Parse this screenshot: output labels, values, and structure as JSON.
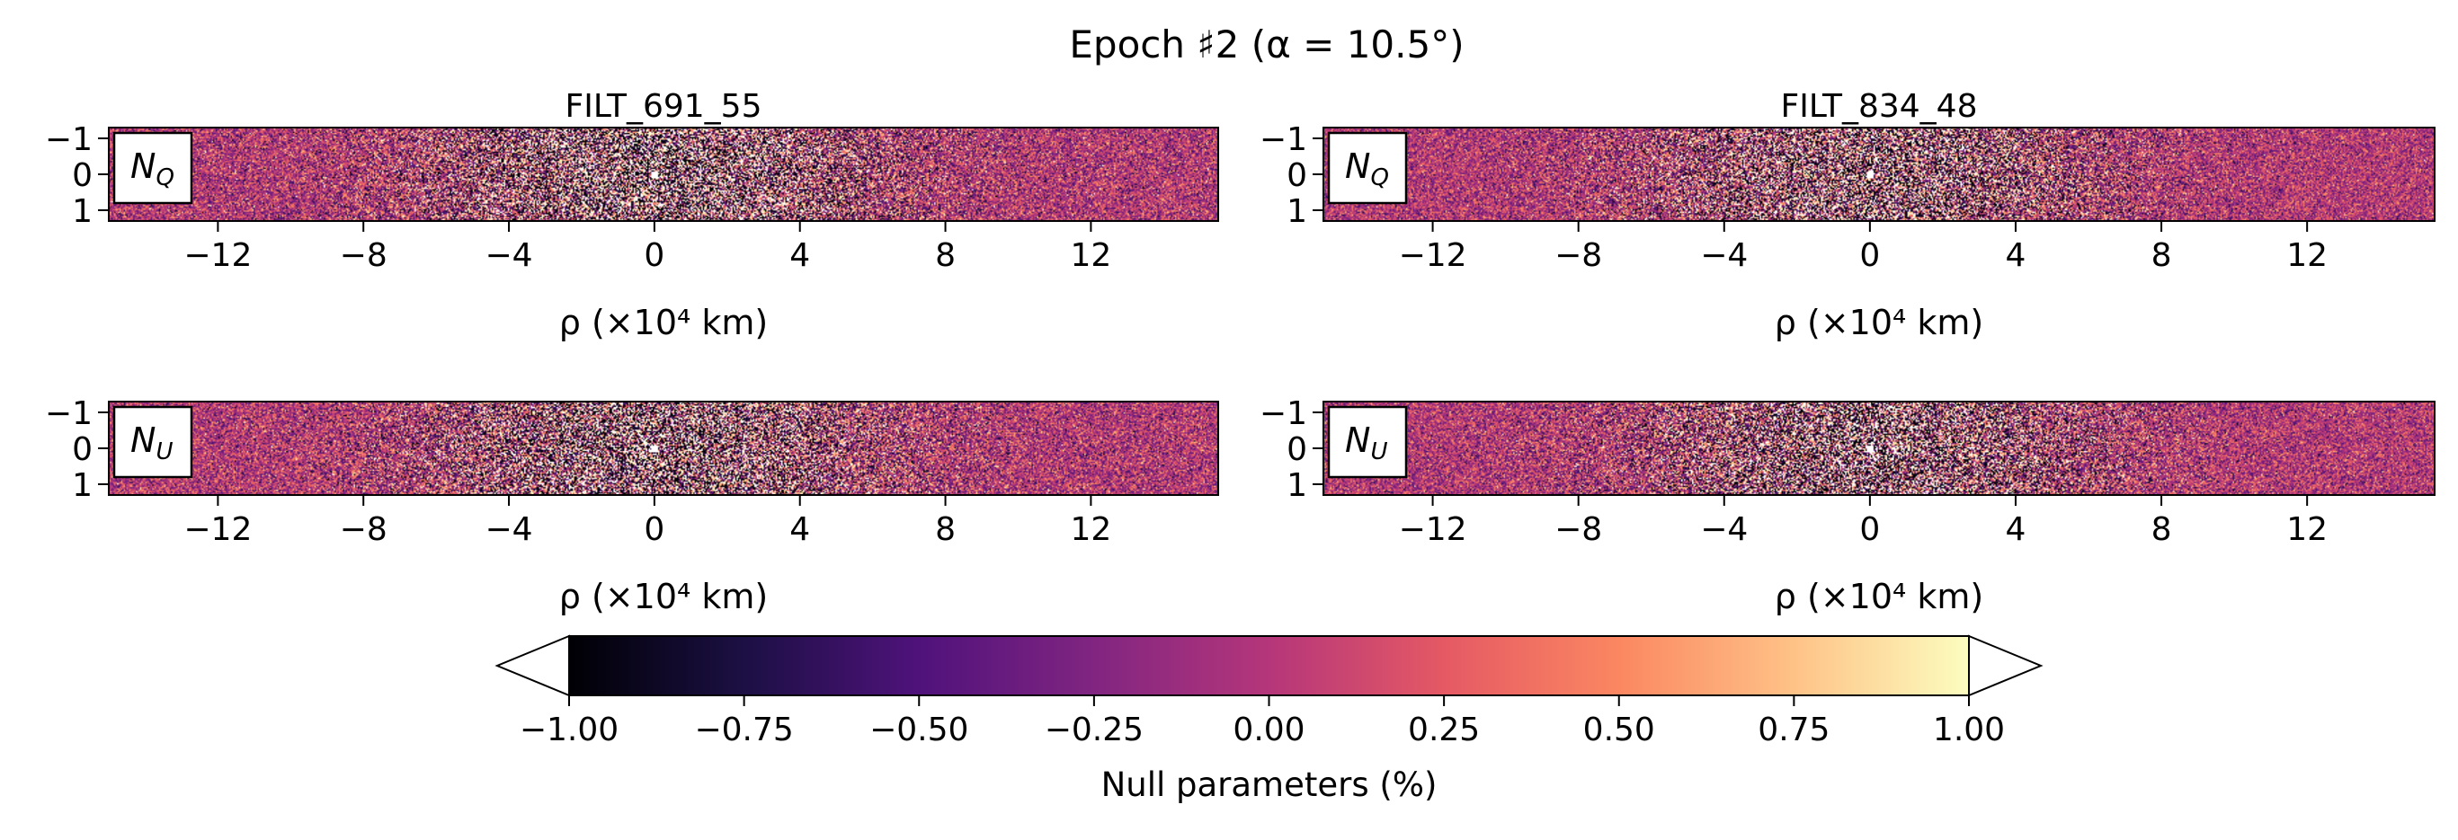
{
  "figure": {
    "title": "Epoch ♯2 (α = 10.5°)"
  },
  "chart_data": [
    {
      "type": "heatmap",
      "panel": "FILT_691_55 N_Q",
      "title": "FILT_691_55",
      "label": "N",
      "label_sub": "Q",
      "xlabel": "ρ (×10⁴ km)",
      "xlim": [
        -15,
        15.5
      ],
      "ylim": [
        1.3,
        -1.3
      ],
      "xticks": [
        -12,
        -8,
        -4,
        0,
        4,
        8,
        12
      ],
      "xtick_labels": [
        "−12",
        "−8",
        "−4",
        "0",
        "4",
        "8",
        "12"
      ],
      "yticks": [
        -1,
        0,
        1
      ],
      "ytick_labels": [
        "−1",
        "0",
        "1"
      ],
      "center_rho": 0,
      "noise_level": 0.62,
      "cmap": "magma",
      "value_range": [
        -1.0,
        1.0
      ]
    },
    {
      "type": "heatmap",
      "panel": "FILT_834_48 N_Q",
      "title": "FILT_834_48",
      "label": "N",
      "label_sub": "Q",
      "xlabel": "ρ (×10⁴ km)",
      "xlim": [
        -15,
        15.5
      ],
      "ylim": [
        1.3,
        -1.3
      ],
      "xticks": [
        -12,
        -8,
        -4,
        0,
        4,
        8,
        12
      ],
      "xtick_labels": [
        "−12",
        "−8",
        "−4",
        "0",
        "4",
        "8",
        "12"
      ],
      "yticks": [
        -1,
        0,
        1
      ],
      "ytick_labels": [
        "−1",
        "0",
        "1"
      ],
      "center_rho": 0,
      "noise_level": 0.55,
      "cmap": "magma",
      "value_range": [
        -1.0,
        1.0
      ]
    },
    {
      "type": "heatmap",
      "panel": "FILT_691_55 N_U",
      "title": "",
      "label": "N",
      "label_sub": "U",
      "xlabel": "ρ (×10⁴ km)",
      "xlim": [
        -15,
        15.5
      ],
      "ylim": [
        1.3,
        -1.3
      ],
      "xticks": [
        -12,
        -8,
        -4,
        0,
        4,
        8,
        12
      ],
      "xtick_labels": [
        "−12",
        "−8",
        "−4",
        "0",
        "4",
        "8",
        "12"
      ],
      "yticks": [
        -1,
        0,
        1
      ],
      "ytick_labels": [
        "−1",
        "0",
        "1"
      ],
      "center_rho": 0,
      "noise_level": 0.6,
      "cmap": "magma",
      "value_range": [
        -1.0,
        1.0
      ]
    },
    {
      "type": "heatmap",
      "panel": "FILT_834_48 N_U",
      "title": "",
      "label": "N",
      "label_sub": "U",
      "xlabel": "ρ (×10⁴ km)",
      "xlim": [
        -15,
        15.5
      ],
      "ylim": [
        1.3,
        -1.3
      ],
      "xticks": [
        -12,
        -8,
        -4,
        0,
        4,
        8,
        12
      ],
      "xtick_labels": [
        "−12",
        "−8",
        "−4",
        "0",
        "4",
        "8",
        "12"
      ],
      "yticks": [
        -1,
        0,
        1
      ],
      "ytick_labels": [
        "−1",
        "0",
        "1"
      ],
      "center_rho": 0,
      "noise_level": 0.56,
      "cmap": "magma",
      "value_range": [
        -1.0,
        1.0
      ]
    }
  ],
  "colorbar": {
    "label": "Null parameters (%)",
    "range": [
      -1.0,
      1.0
    ],
    "ticks": [
      -1.0,
      -0.75,
      -0.5,
      -0.25,
      0.0,
      0.25,
      0.5,
      0.75,
      1.0
    ],
    "tick_labels": [
      "−1.00",
      "−0.75",
      "−0.50",
      "−0.25",
      "0.00",
      "0.25",
      "0.50",
      "0.75",
      "1.00"
    ],
    "extend": "both",
    "cmap": "magma",
    "cmap_stops": [
      "#000004",
      "#1c1044",
      "#4f127b",
      "#812581",
      "#b5367a",
      "#e55964",
      "#fb8761",
      "#fec287",
      "#fcfdbf"
    ]
  }
}
